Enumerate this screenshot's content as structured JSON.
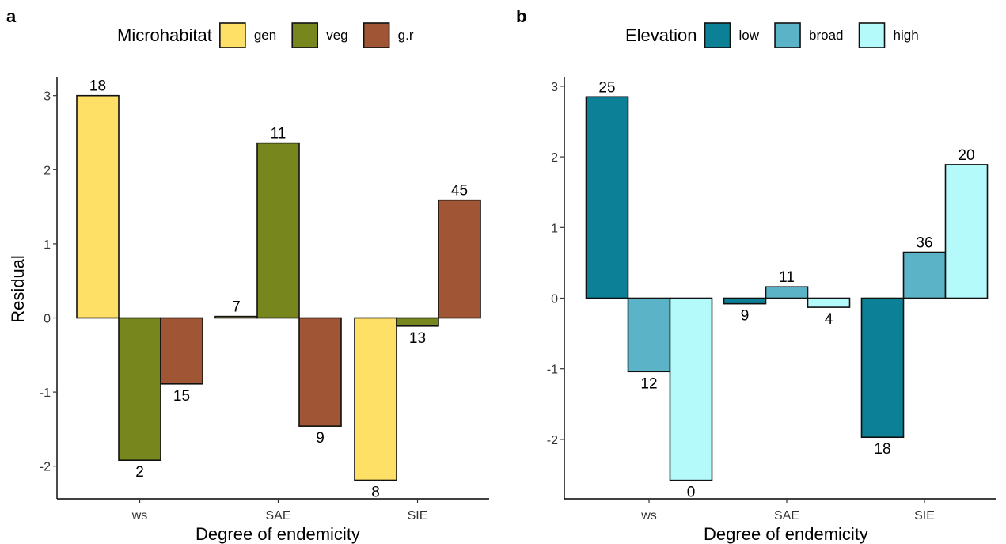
{
  "chart_data": [
    {
      "panel": "a",
      "type": "bar",
      "legend_title": "Microhabitat",
      "legend_placement": "top",
      "xlabel": "Degree of endemicity",
      "ylabel": "Residual",
      "categories": [
        "ws",
        "SAE",
        "SIE"
      ],
      "ylim": [
        -2.4,
        3.25
      ],
      "yticks": [
        -2,
        -1,
        0,
        1,
        2,
        3
      ],
      "ytick_labels": [
        "-2",
        "-1",
        "0",
        "1",
        "2",
        "3"
      ],
      "grid": false,
      "series": [
        {
          "name": "gen",
          "color": "#FFE066",
          "values": [
            3.0,
            0.02,
            -2.19
          ],
          "labels": [
            "18",
            "7",
            "8"
          ]
        },
        {
          "name": "veg",
          "color": "#77871E",
          "values": [
            -1.92,
            2.36,
            -0.11
          ],
          "labels": [
            "2",
            "11",
            "13"
          ]
        },
        {
          "name": "g.r",
          "color": "#A05634",
          "values": [
            -0.89,
            -1.46,
            1.59
          ],
          "labels": [
            "15",
            "9",
            "45"
          ]
        }
      ]
    },
    {
      "panel": "b",
      "type": "bar",
      "legend_title": "Elevation",
      "legend_placement": "top",
      "xlabel": "Degree of endemicity",
      "ylabel": "",
      "categories": [
        "ws",
        "SAE",
        "SIE"
      ],
      "ylim": [
        -2.85,
        3.1
      ],
      "yticks": [
        -2,
        -1,
        0,
        1,
        2,
        3
      ],
      "ytick_labels": [
        "-2",
        "-1",
        "0",
        "1",
        "2",
        "3"
      ],
      "grid": false,
      "series": [
        {
          "name": "low",
          "color": "#0B8097",
          "values": [
            2.85,
            -0.08,
            -1.97
          ],
          "labels": [
            "25",
            "9",
            "18"
          ]
        },
        {
          "name": "broad",
          "color": "#5AB3C7",
          "values": [
            -1.04,
            0.16,
            0.65
          ],
          "labels": [
            "12",
            "11",
            "36"
          ]
        },
        {
          "name": "high",
          "color": "#B5FAFA",
          "values": [
            -2.58,
            -0.13,
            1.89
          ],
          "labels": [
            "0",
            "4",
            "20"
          ]
        }
      ]
    }
  ]
}
